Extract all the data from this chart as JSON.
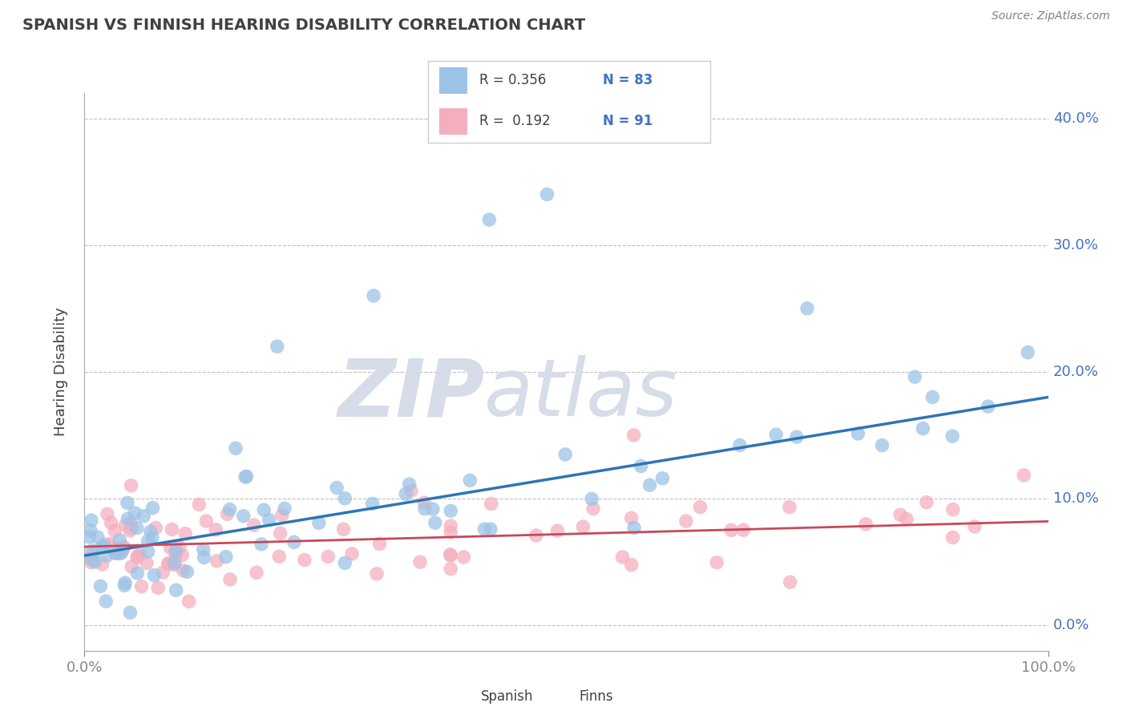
{
  "title": "SPANISH VS FINNISH HEARING DISABILITY CORRELATION CHART",
  "source_text": "Source: ZipAtlas.com",
  "ylabel": "Hearing Disability",
  "xlim": [
    0,
    100
  ],
  "ylim": [
    -2,
    42
  ],
  "ytick_vals": [
    0,
    10,
    20,
    30,
    40
  ],
  "ytick_labels_right": [
    "0.0%",
    "10.0%",
    "20.0%",
    "30.0%",
    "40.0%"
  ],
  "xtick_vals": [
    0,
    100
  ],
  "xtick_labels": [
    "0.0%",
    "100.0%"
  ],
  "legend_r1": "R = 0.356",
  "legend_n1": "N = 83",
  "legend_r2": "R = 0.192",
  "legend_n2": "N = 91",
  "legend_label1": "Spanish",
  "legend_label2": "Finns",
  "blue_color": "#9DC3E6",
  "pink_color": "#F4AFBE",
  "blue_line_color": "#2E75B6",
  "pink_line_color": "#C9485B",
  "watermark_zip_color": "#D6DCE8",
  "watermark_atlas_color": "#D6DCE8",
  "background_color": "#FFFFFF",
  "grid_color": "#BFBFBF",
  "title_color": "#404040",
  "source_color": "#808080",
  "ylabel_color": "#404040",
  "axis_tick_color": "#4472C4",
  "legend_text_color": "#404040",
  "legend_n_color": "#4472C4",
  "blue_trend_x": [
    0,
    100
  ],
  "blue_trend_y": [
    5.5,
    18.0
  ],
  "pink_trend_x": [
    0,
    100
  ],
  "pink_trend_y": [
    6.2,
    8.2
  ],
  "seed": 77
}
